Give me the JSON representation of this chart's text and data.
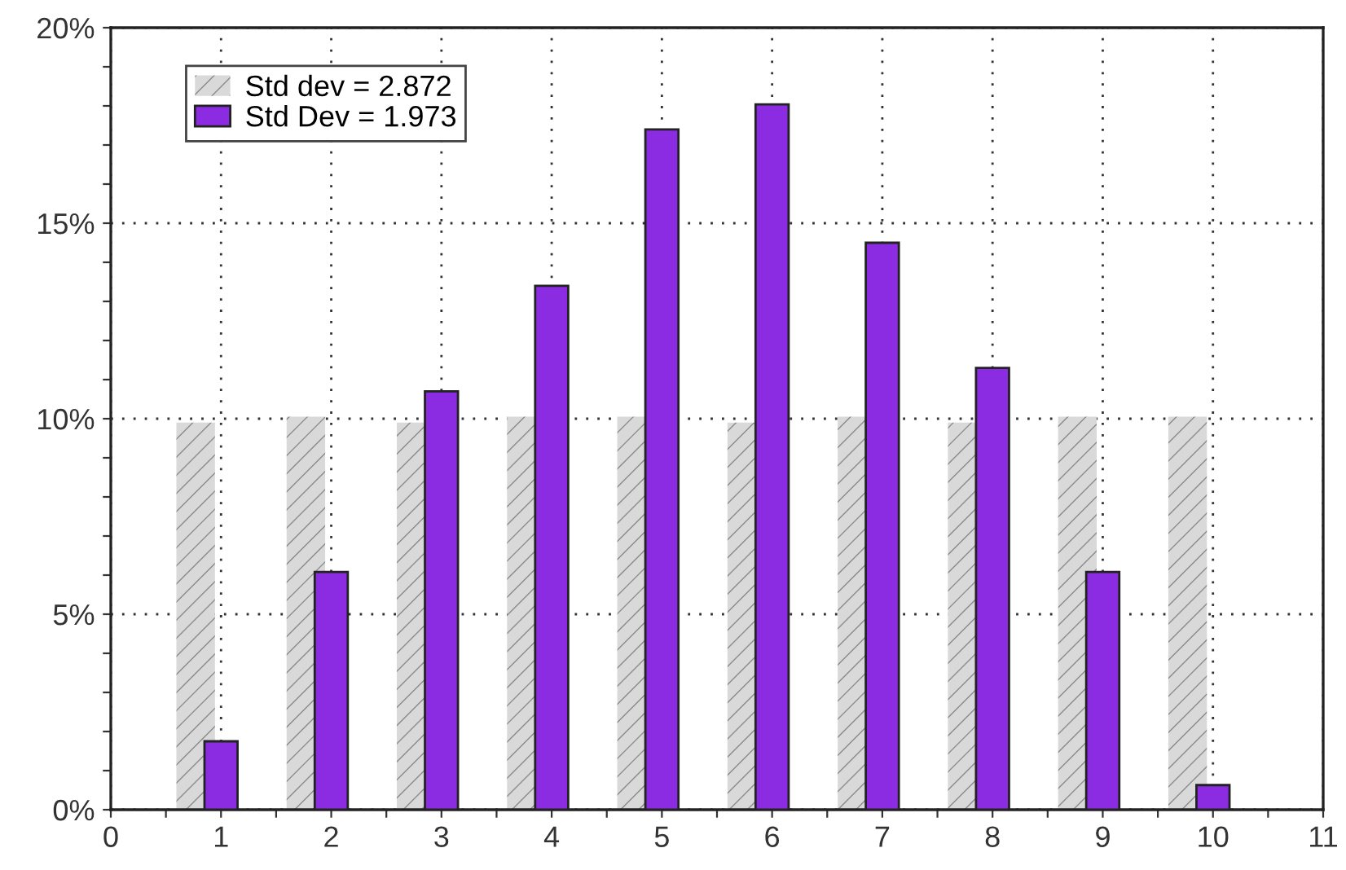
{
  "chart_data": {
    "type": "bar",
    "x": [
      1,
      2,
      3,
      4,
      5,
      6,
      7,
      8,
      9,
      10
    ],
    "series": [
      {
        "name": "Std dev = 2.872",
        "color": "#d9d9d9",
        "values": [
          9.9,
          10.05,
          9.9,
          10.05,
          10.05,
          9.9,
          10.05,
          9.9,
          10.05,
          10.05
        ]
      },
      {
        "name": "Std Dev = 1.973",
        "color": "#8b2be2",
        "values": [
          1.75,
          6.08,
          10.7,
          13.4,
          17.4,
          18.04,
          14.5,
          11.3,
          6.08,
          0.63
        ]
      }
    ],
    "xlim": [
      0,
      11
    ],
    "xticks": [
      0,
      {
        "value": 0.5,
        "label": null
      },
      1,
      {
        "value": 1.5,
        "label": null
      },
      2,
      {
        "value": 2.5,
        "label": null
      },
      3,
      {
        "value": 3.5,
        "label": null
      },
      4,
      {
        "value": 4.5,
        "label": null
      },
      5,
      {
        "value": 5.5,
        "label": null
      },
      6,
      {
        "value": 6.5,
        "label": null
      },
      7,
      {
        "value": 7.5,
        "label": null
      },
      8,
      {
        "value": 8.5,
        "label": null
      },
      9,
      {
        "value": 9.5,
        "label": null
      },
      10,
      {
        "value": 10.5,
        "label": null
      },
      11
    ],
    "ylim": [
      0,
      20
    ],
    "yticks": [
      {
        "value": 0,
        "label": "0%"
      },
      {
        "value": 1,
        "label": null
      },
      {
        "value": 2,
        "label": null
      },
      {
        "value": 3,
        "label": null
      },
      {
        "value": 4,
        "label": null
      },
      {
        "value": 5,
        "label": "5%"
      },
      {
        "value": 6,
        "label": null
      },
      {
        "value": 7,
        "label": null
      },
      {
        "value": 8,
        "label": null
      },
      {
        "value": 9,
        "label": null
      },
      {
        "value": 10,
        "label": "10%"
      },
      {
        "value": 11,
        "label": null
      },
      {
        "value": 12,
        "label": null
      },
      {
        "value": 13,
        "label": null
      },
      {
        "value": 14,
        "label": null
      },
      {
        "value": 15,
        "label": "15%"
      },
      {
        "value": 16,
        "label": null
      },
      {
        "value": 17,
        "label": null
      },
      {
        "value": 18,
        "label": null
      },
      {
        "value": 19,
        "label": null
      },
      {
        "value": 20,
        "label": "20%"
      }
    ],
    "grid": true,
    "legend": "top left"
  }
}
